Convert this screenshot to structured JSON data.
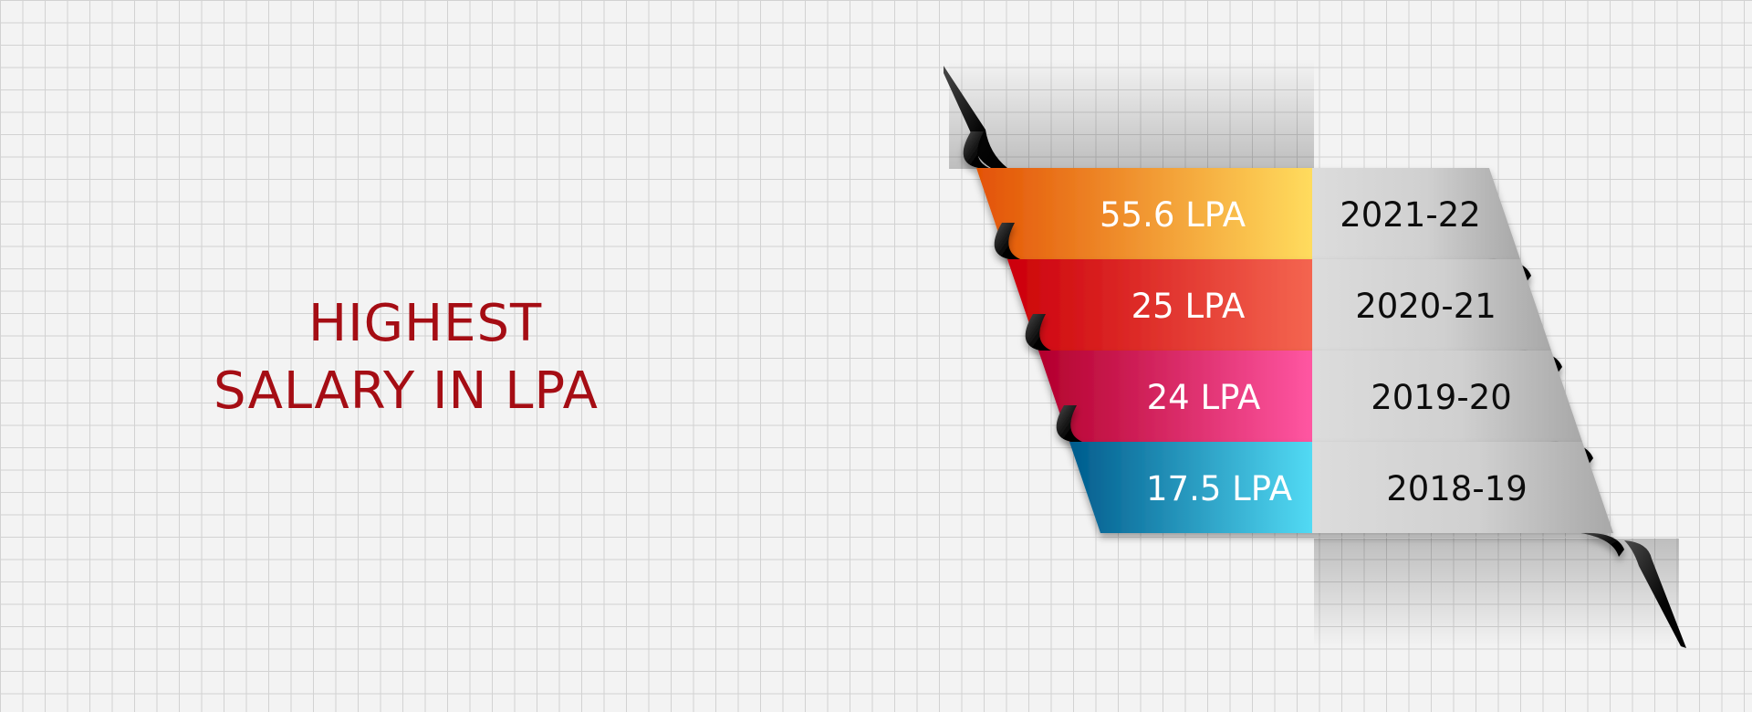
{
  "chart_data": {
    "type": "bar",
    "title": "HIGHEST SALARY IN LPA",
    "title_lines": [
      "HIGHEST",
      "SALARY IN LPA"
    ],
    "unit": "LPA",
    "categories": [
      "2021-22",
      "2020-21",
      "2019-20",
      "2018-19"
    ],
    "values": [
      55.6,
      25,
      24,
      17.5
    ],
    "value_labels": [
      "55.6 LPA",
      "25 LPA",
      "24 LPA",
      "17.5 LPA"
    ],
    "band_colors": [
      [
        "#e35205",
        "#ffdc5e"
      ],
      [
        "#cc000a",
        "#f46550"
      ],
      [
        "#b3002c",
        "#ff56a2"
      ],
      [
        "#005b8c",
        "#52daf4"
      ]
    ],
    "title_color": "#a50d14"
  }
}
